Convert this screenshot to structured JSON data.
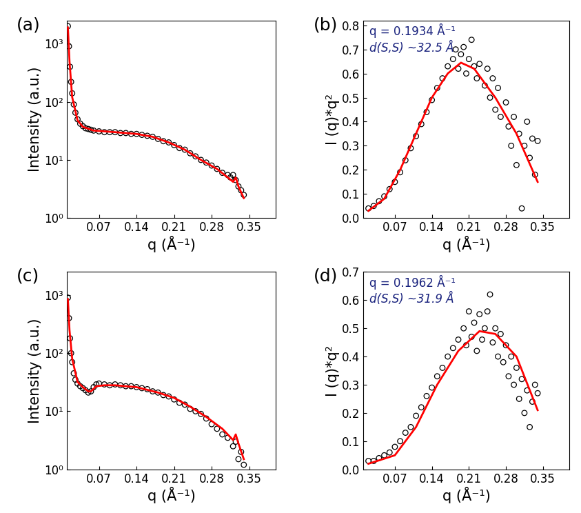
{
  "chart_data": [
    {
      "type": "scatter",
      "title": "(a)",
      "x_label": "q (Å⁻¹)",
      "y_label": "Intensity (a.u.)",
      "log": "y",
      "grid": false,
      "xlim": [
        0.01,
        0.4
      ],
      "xticks": [
        0.07,
        0.14,
        0.21,
        0.28,
        0.35
      ],
      "ylim": [
        1,
        2500
      ],
      "yticks": [
        {
          "value": 1,
          "label": "10⁰"
        },
        {
          "value": 10,
          "label": "10¹"
        },
        {
          "value": 100,
          "label": "10²"
        },
        {
          "value": 1000,
          "label": "10³"
        }
      ],
      "annotations": [],
      "series": [
        {
          "type": "scatter",
          "color": "#000000",
          "marker": "o",
          "x": [
            0.012,
            0.014,
            0.016,
            0.018,
            0.02,
            0.023,
            0.026,
            0.03,
            0.035,
            0.04,
            0.045,
            0.05,
            0.055,
            0.06,
            0.07,
            0.08,
            0.09,
            0.1,
            0.11,
            0.12,
            0.13,
            0.14,
            0.15,
            0.16,
            0.17,
            0.18,
            0.19,
            0.2,
            0.21,
            0.22,
            0.23,
            0.24,
            0.25,
            0.26,
            0.27,
            0.28,
            0.29,
            0.3,
            0.31,
            0.315,
            0.32,
            0.325,
            0.33,
            0.335,
            0.34
          ],
          "values": [
            2000,
            900,
            400,
            220,
            140,
            90,
            65,
            50,
            42,
            38,
            35,
            34,
            33,
            32,
            31,
            30,
            30,
            30,
            29,
            29,
            28,
            28,
            27,
            26,
            25,
            23,
            21,
            20,
            18,
            16,
            15,
            13,
            11.5,
            10,
            9,
            8,
            7,
            6,
            5.5,
            5,
            5.5,
            4.5,
            3.5,
            3,
            2.5
          ]
        },
        {
          "type": "line",
          "color": "#ff0000",
          "x": [
            0.012,
            0.015,
            0.02,
            0.03,
            0.04,
            0.06,
            0.1,
            0.14,
            0.17,
            0.2,
            0.23,
            0.26,
            0.29,
            0.31,
            0.32,
            0.325,
            0.33,
            0.34
          ],
          "values": [
            1900,
            500,
            120,
            48,
            37,
            32,
            30,
            28,
            25,
            20,
            15,
            10,
            7,
            5,
            4.2,
            5,
            3.5,
            2.2
          ]
        }
      ]
    },
    {
      "type": "scatter",
      "title": "(b)",
      "x_label": "q (Å⁻¹)",
      "y_label": "I (q)*q²",
      "grid": false,
      "xlim": [
        0.01,
        0.4
      ],
      "xticks": [
        0.07,
        0.14,
        0.21,
        0.28,
        0.35
      ],
      "ylim": [
        0.0,
        0.82
      ],
      "yticks": [
        0.0,
        0.1,
        0.2,
        0.3,
        0.4,
        0.5,
        0.6,
        0.7,
        0.8
      ],
      "annotations": [
        "q = 0.1934 Å⁻¹",
        "d(S,S) ~32.5 Å"
      ],
      "series": [
        {
          "type": "scatter",
          "color": "#000000",
          "marker": "o",
          "x": [
            0.02,
            0.03,
            0.04,
            0.05,
            0.06,
            0.07,
            0.08,
            0.09,
            0.1,
            0.11,
            0.12,
            0.13,
            0.14,
            0.15,
            0.16,
            0.17,
            0.18,
            0.185,
            0.19,
            0.195,
            0.2,
            0.205,
            0.21,
            0.215,
            0.22,
            0.225,
            0.23,
            0.24,
            0.245,
            0.25,
            0.255,
            0.26,
            0.265,
            0.27,
            0.28,
            0.285,
            0.29,
            0.295,
            0.3,
            0.305,
            0.31,
            0.315,
            0.32,
            0.325,
            0.33,
            0.335,
            0.34
          ],
          "values": [
            0.04,
            0.05,
            0.07,
            0.09,
            0.12,
            0.15,
            0.19,
            0.24,
            0.29,
            0.34,
            0.39,
            0.44,
            0.49,
            0.54,
            0.58,
            0.63,
            0.66,
            0.7,
            0.62,
            0.68,
            0.71,
            0.6,
            0.66,
            0.74,
            0.63,
            0.58,
            0.64,
            0.55,
            0.62,
            0.5,
            0.58,
            0.45,
            0.54,
            0.42,
            0.48,
            0.38,
            0.3,
            0.42,
            0.22,
            0.35,
            0.04,
            0.3,
            0.4,
            0.25,
            0.33,
            0.18,
            0.32
          ]
        },
        {
          "type": "line",
          "color": "#ff0000",
          "x": [
            0.02,
            0.05,
            0.08,
            0.11,
            0.14,
            0.17,
            0.195,
            0.22,
            0.26,
            0.3,
            0.34
          ],
          "values": [
            0.03,
            0.08,
            0.2,
            0.35,
            0.5,
            0.6,
            0.645,
            0.62,
            0.5,
            0.35,
            0.15
          ]
        }
      ]
    },
    {
      "type": "scatter",
      "title": "(c)",
      "x_label": "q (Å⁻¹)",
      "y_label": "Intensity (a.u.)",
      "log": "y",
      "grid": false,
      "xlim": [
        0.01,
        0.4
      ],
      "xticks": [
        0.07,
        0.14,
        0.21,
        0.28,
        0.35
      ],
      "ylim": [
        1,
        2500
      ],
      "yticks": [
        {
          "value": 1,
          "label": "10⁰"
        },
        {
          "value": 10,
          "label": "10¹"
        },
        {
          "value": 100,
          "label": "10²"
        },
        {
          "value": 1000,
          "label": "10³"
        }
      ],
      "annotations": [],
      "series": [
        {
          "type": "scatter",
          "color": "#000000",
          "marker": "o",
          "x": [
            0.012,
            0.014,
            0.016,
            0.018,
            0.02,
            0.023,
            0.026,
            0.03,
            0.035,
            0.04,
            0.045,
            0.05,
            0.055,
            0.06,
            0.065,
            0.07,
            0.08,
            0.09,
            0.1,
            0.11,
            0.12,
            0.13,
            0.14,
            0.15,
            0.16,
            0.17,
            0.18,
            0.19,
            0.2,
            0.21,
            0.22,
            0.23,
            0.24,
            0.25,
            0.26,
            0.27,
            0.28,
            0.29,
            0.3,
            0.31,
            0.32,
            0.325,
            0.33,
            0.335,
            0.34
          ],
          "values": [
            900,
            400,
            180,
            100,
            70,
            45,
            35,
            30,
            27,
            25,
            23,
            21,
            22,
            26,
            29,
            30,
            29,
            28,
            29,
            28,
            27,
            27,
            26,
            25,
            24,
            22,
            21,
            19,
            18,
            16,
            14,
            13,
            11,
            10,
            9,
            7.5,
            6,
            5,
            4,
            3.5,
            2.5,
            3,
            1.5,
            2,
            1.2
          ]
        },
        {
          "type": "line",
          "color": "#ff0000",
          "x": [
            0.012,
            0.015,
            0.02,
            0.03,
            0.04,
            0.05,
            0.055,
            0.065,
            0.08,
            0.1,
            0.14,
            0.18,
            0.21,
            0.24,
            0.27,
            0.3,
            0.32,
            0.325,
            0.33,
            0.34
          ],
          "values": [
            850,
            250,
            80,
            32,
            26,
            22,
            22,
            27,
            28,
            28,
            26,
            21,
            17,
            12,
            8,
            5,
            3.2,
            4,
            2.8,
            1.5
          ]
        }
      ]
    },
    {
      "type": "scatter",
      "title": "(d)",
      "x_label": "q (Å⁻¹)",
      "y_label": "I (q)*q²",
      "grid": false,
      "xlim": [
        0.01,
        0.4
      ],
      "xticks": [
        0.07,
        0.14,
        0.21,
        0.28,
        0.35
      ],
      "ylim": [
        0.0,
        0.7
      ],
      "yticks": [
        0.0,
        0.1,
        0.2,
        0.3,
        0.4,
        0.5,
        0.6,
        0.7
      ],
      "annotations": [
        "q = 0.1962 Å⁻¹",
        "d(S,S) ~31.9 Å"
      ],
      "series": [
        {
          "type": "scatter",
          "color": "#000000",
          "marker": "o",
          "x": [
            0.02,
            0.03,
            0.04,
            0.05,
            0.06,
            0.07,
            0.08,
            0.09,
            0.1,
            0.11,
            0.12,
            0.13,
            0.14,
            0.15,
            0.16,
            0.17,
            0.18,
            0.19,
            0.2,
            0.205,
            0.21,
            0.215,
            0.22,
            0.225,
            0.23,
            0.235,
            0.24,
            0.245,
            0.25,
            0.255,
            0.26,
            0.265,
            0.27,
            0.275,
            0.28,
            0.285,
            0.29,
            0.295,
            0.3,
            0.305,
            0.31,
            0.315,
            0.32,
            0.325,
            0.33,
            0.335,
            0.34
          ],
          "values": [
            0.03,
            0.03,
            0.04,
            0.05,
            0.06,
            0.08,
            0.1,
            0.13,
            0.15,
            0.19,
            0.22,
            0.26,
            0.29,
            0.33,
            0.36,
            0.4,
            0.43,
            0.46,
            0.5,
            0.44,
            0.56,
            0.47,
            0.52,
            0.42,
            0.55,
            0.46,
            0.5,
            0.56,
            0.62,
            0.45,
            0.5,
            0.4,
            0.48,
            0.38,
            0.44,
            0.33,
            0.4,
            0.3,
            0.36,
            0.25,
            0.32,
            0.2,
            0.28,
            0.15,
            0.24,
            0.3,
            0.27
          ]
        },
        {
          "type": "line",
          "color": "#ff0000",
          "x": [
            0.02,
            0.07,
            0.11,
            0.15,
            0.19,
            0.23,
            0.26,
            0.3,
            0.34
          ],
          "values": [
            0.02,
            0.05,
            0.15,
            0.3,
            0.42,
            0.49,
            0.48,
            0.4,
            0.21
          ]
        }
      ]
    }
  ]
}
